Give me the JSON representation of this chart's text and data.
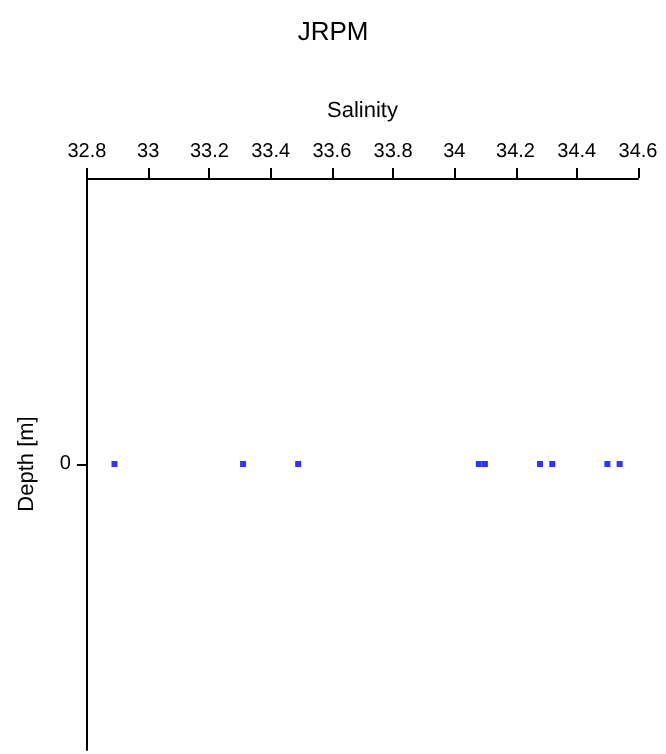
{
  "chart_data": {
    "type": "scatter",
    "title": "JRPM",
    "xlabel": "Salinity",
    "ylabel": "Depth [m]",
    "orientation": "horizontal",
    "categories": [
      "0"
    ],
    "series": [
      {
        "color": "#0000ff",
        "x": [
          "0",
          "0",
          "0",
          "0",
          "0",
          "0",
          "0",
          "0",
          "0"
        ],
        "values": [
          32.89,
          33.31,
          33.49,
          34.08,
          34.1,
          34.28,
          34.32,
          34.5,
          34.54
        ]
      }
    ],
    "marker": "square",
    "xlim": [
      32.8,
      34.6
    ],
    "xticks": [
      32.8,
      33,
      33.2,
      33.4,
      33.6,
      33.8,
      34,
      34.2,
      34.4,
      34.6
    ],
    "grid": false
  }
}
